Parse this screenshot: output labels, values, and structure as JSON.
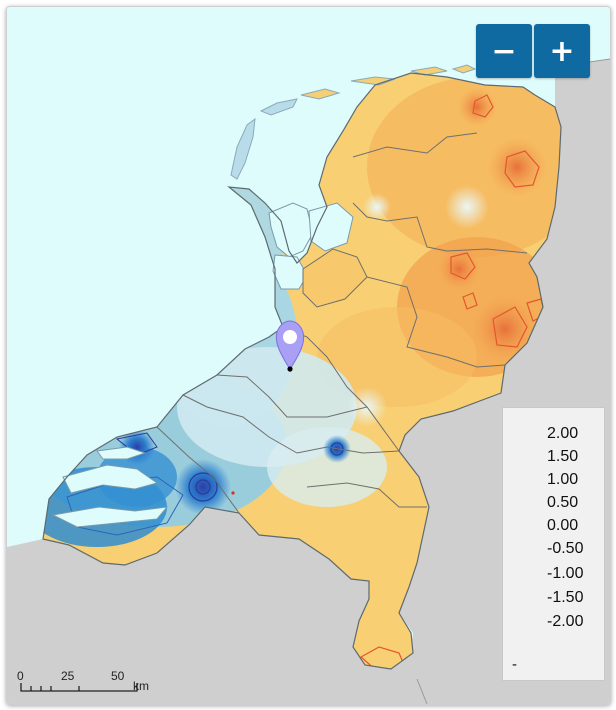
{
  "zoom": {
    "out_label": "−",
    "in_label": "+"
  },
  "legend": {
    "ticks": [
      "2.00",
      "1.50",
      "1.00",
      "0.50",
      "0.00",
      "-0.50",
      "-1.00",
      "-1.50",
      "-2.00"
    ],
    "nodata_label": "-",
    "colors": [
      "#3b2a86",
      "#2a64b8",
      "#1c93d0",
      "#9fd3ea",
      "#eef4f1",
      "#f9e07a",
      "#f4a64a",
      "#e4562e",
      "#8e1515"
    ]
  },
  "scale": {
    "labels": [
      "0",
      "25",
      "50"
    ],
    "unit": "km"
  },
  "map": {
    "sea_color": "#dffcfc",
    "land_outside_color": "#cfcfcf",
    "boundary_color": "#6f6f6f",
    "marker_color": "#a9a0f5",
    "marker_icon": "map-pin-icon"
  }
}
